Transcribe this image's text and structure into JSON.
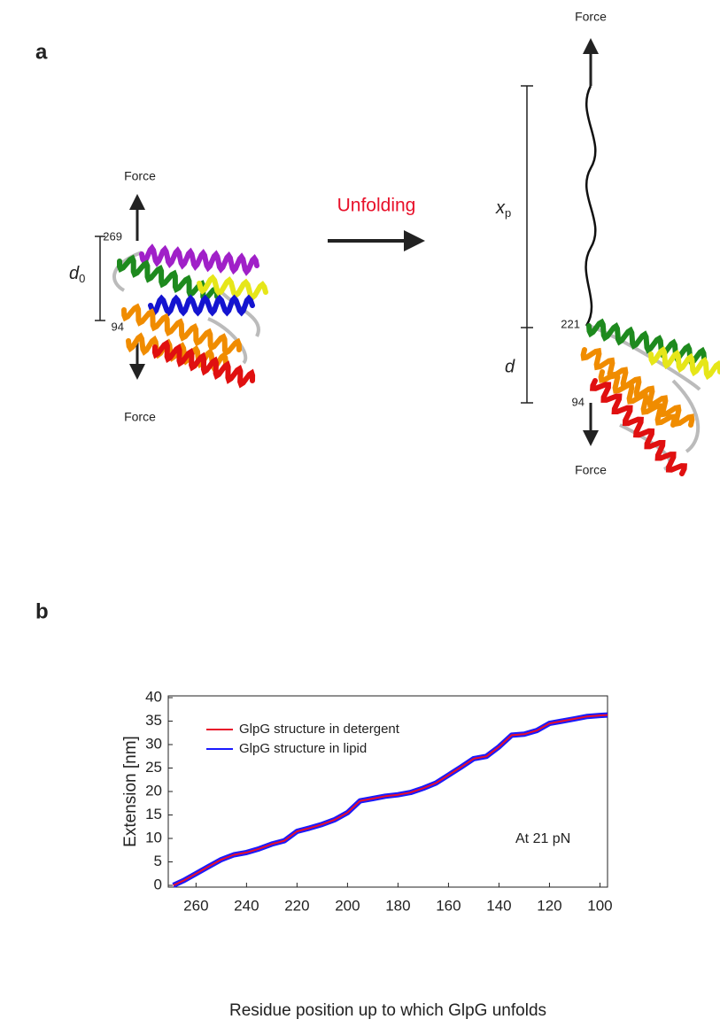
{
  "panel_a": {
    "label": "a",
    "force_left_top": "Force",
    "force_left_bottom": "Force",
    "force_right_top": "Force",
    "force_right_bottom": "Force",
    "residue_left_top": "269",
    "residue_left_bottom": "94",
    "d0": {
      "main": "d",
      "sub": "0"
    },
    "arrow_label": "Unfolding",
    "xp": {
      "main": "x",
      "sub": "p"
    },
    "residue_right_top": "221",
    "d": "d",
    "residue_right_bottom": "94"
  },
  "panel_b": {
    "label": "b"
  },
  "chart_data": {
    "type": "line",
    "xlabel": "Residue position up to which GlpG unfolds",
    "ylabel": "Extension [nm]",
    "annotation": "At 21 pN",
    "x": [
      269,
      265,
      260,
      255,
      250,
      245,
      240,
      235,
      230,
      225,
      220,
      215,
      210,
      205,
      200,
      195,
      190,
      185,
      180,
      175,
      170,
      165,
      160,
      155,
      150,
      145,
      140,
      135,
      130,
      125,
      120,
      115,
      110,
      105,
      100,
      97
    ],
    "series": [
      {
        "name": "GlpG structure in lipid",
        "color": "#1a1aff",
        "values": [
          0,
          1,
          2.5,
          4,
          5.5,
          6.5,
          7,
          7.8,
          8.8,
          9.5,
          11.5,
          12.2,
          13,
          14,
          15.5,
          18,
          18.5,
          19,
          19.3,
          19.8,
          20.7,
          21.8,
          23.5,
          25.2,
          27,
          27.5,
          29.5,
          32,
          32.2,
          33,
          34.5,
          35,
          35.5,
          36,
          36.2,
          36.3
        ]
      },
      {
        "name": "GlpG structure in detergent",
        "color": "#e8102a",
        "values": [
          0,
          1,
          2.5,
          4,
          5.5,
          6.5,
          7,
          7.8,
          8.8,
          9.5,
          11.5,
          12.2,
          13,
          14,
          15.5,
          18,
          18.5,
          19,
          19.3,
          19.8,
          20.7,
          21.8,
          23.5,
          25.2,
          27,
          27.5,
          29.5,
          32,
          32.2,
          33,
          34.5,
          35,
          35.5,
          36,
          36.2,
          36.3
        ]
      }
    ],
    "xlim": [
      271,
      97
    ],
    "xticks": [
      260,
      240,
      220,
      200,
      180,
      160,
      140,
      120,
      100
    ],
    "ylim": [
      0,
      40
    ],
    "yticks": [
      0,
      5,
      10,
      15,
      20,
      25,
      30,
      35,
      40
    ]
  }
}
